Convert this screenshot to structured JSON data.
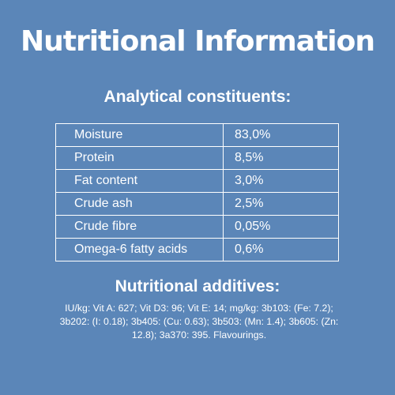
{
  "title": "Nutritional Information",
  "analytical": {
    "heading": "Analytical constituents:",
    "rows": [
      {
        "name": "Moisture",
        "value": "83,0%"
      },
      {
        "name": "Protein",
        "value": "8,5%"
      },
      {
        "name": "Fat content",
        "value": "3,0%"
      },
      {
        "name": "Crude ash",
        "value": "2,5%"
      },
      {
        "name": "Crude fibre",
        "value": "0,05%"
      },
      {
        "name": "Omega-6 fatty acids",
        "value": "0,6%"
      }
    ]
  },
  "additives": {
    "heading": "Nutritional additives:",
    "text": "IU/kg: Vit A: 627; Vit D3: 96; Vit E: 14; mg/kg: 3b103: (Fe: 7.2); 3b202: (I: 0.18); 3b405: (Cu: 0.63); 3b503: (Mn: 1.4); 3b605: (Zn: 12.8); 3a370: 395. Flavourings."
  },
  "colors": {
    "background": "#5b86b8",
    "text": "#ffffff"
  }
}
